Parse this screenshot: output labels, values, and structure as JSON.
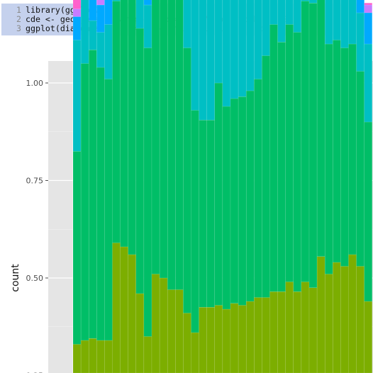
{
  "code": {
    "lines": [
      {
        "num": "1",
        "parts": [
          {
            "t": "library(ggplot2)",
            "k": "plain"
          }
        ]
      },
      {
        "num": "2",
        "parts": [
          {
            "t": "cde <- geom_histogram(position=",
            "k": "plain"
          },
          {
            "t": "\"fill\"",
            "k": "str"
          },
          {
            "t": ", binwidth = ",
            "k": "plain"
          },
          {
            "t": "500",
            "k": "num"
          },
          {
            "t": ")",
            "k": "plain"
          }
        ]
      },
      {
        "num": "3",
        "parts": [
          {
            "t": "ggplot(diamonds, aes(x=price, fill=clarity)) + cde",
            "k": "plain"
          }
        ]
      }
    ]
  },
  "chart_data": {
    "type": "bar",
    "stacking": "fill",
    "ylabel": "count",
    "y_ticks": [
      "1.00",
      "0.75",
      "0.50",
      "0.25"
    ],
    "y_tick_values": [
      1.0,
      0.75,
      0.5,
      0.25
    ],
    "ylim": [
      0.25,
      1.0
    ],
    "bins": 38,
    "series_order_bottom_to_top": [
      "brown",
      "olive",
      "green",
      "cyan",
      "blue",
      "purple",
      "pink"
    ],
    "colors": {
      "brown": "#d49a00",
      "olive": "#7cae00",
      "green": "#00be67",
      "cyan": "#00bfc4",
      "blue": "#00a9ff",
      "purple": "#c77cff",
      "pink": "#ff61cc"
    },
    "boundaries": {
      "brown": [
        0.1,
        0.1,
        0.1,
        0.1,
        0.1,
        0.1,
        0.1,
        0.1,
        0.1,
        0.1,
        0.1,
        0.1,
        0.1,
        0.1,
        0.1,
        0.1,
        0.1,
        0.1,
        0.1,
        0.1,
        0.1,
        0.1,
        0.1,
        0.1,
        0.1,
        0.1,
        0.1,
        0.1,
        0.1,
        0.1,
        0.1,
        0.1,
        0.1,
        0.1,
        0.2,
        0.21,
        0.15,
        0.1
      ],
      "olive": [
        0.23,
        0.24,
        0.245,
        0.24,
        0.24,
        0.49,
        0.48,
        0.46,
        0.36,
        0.25,
        0.41,
        0.4,
        0.37,
        0.37,
        0.31,
        0.26,
        0.325,
        0.325,
        0.33,
        0.32,
        0.335,
        0.33,
        0.34,
        0.35,
        0.35,
        0.365,
        0.365,
        0.39,
        0.365,
        0.39,
        0.375,
        0.455,
        0.41,
        0.44,
        0.33,
        0.35,
        0.38,
        0.34
      ],
      "green": [
        0.495,
        0.71,
        0.74,
        0.7,
        0.67,
        0.62,
        0.65,
        0.69,
        0.68,
        0.74,
        0.815,
        0.79,
        0.92,
        0.8,
        0.68,
        0.57,
        0.48,
        0.48,
        0.57,
        0.52,
        0.525,
        0.535,
        0.54,
        0.56,
        0.62,
        0.685,
        0.64,
        0.66,
        0.665,
        0.72,
        0.73,
        0.735,
        0.59,
        0.57,
        0.56,
        0.54,
        0.5,
        0.46
      ],
      "cyan": [
        0.285,
        0.26,
        0.075,
        0.09,
        0.14,
        0.19,
        0.19,
        0.085,
        0.1,
        0.11,
        0.045,
        0.07,
        0.0,
        0.13,
        0.22,
        0.31,
        0.39,
        0.36,
        0.26,
        0.28,
        0.285,
        0.275,
        0.245,
        0.215,
        0.18,
        0.125,
        0.19,
        0.165,
        0.12,
        0.035,
        0.04,
        0.06,
        0.2,
        0.18,
        0.16,
        0.12,
        0.15,
        0.2
      ],
      "blue": [
        0.06,
        0.0,
        0.07,
        0.07,
        0.09,
        0.06,
        0.085,
        0.07,
        0.065,
        0.065,
        0.045,
        0.045,
        0.025,
        0.025,
        0.045,
        0.08,
        0.085,
        0.07,
        0.055,
        0.07,
        0.07,
        0.06,
        0.04,
        0.04,
        0.04,
        0.06,
        0.075,
        0.065,
        0.1,
        0.095,
        0.085,
        0.06,
        0.07,
        0.08,
        0.08,
        0.08,
        0.08,
        0.08
      ],
      "purple": [
        0.02,
        0.06,
        0.075,
        0.06,
        0.06,
        0.04,
        0.025,
        0.035,
        0.035,
        0.025,
        0.025,
        0.015,
        0.015,
        0.015,
        0.015,
        0.025,
        0.025,
        0.04,
        0.04,
        0.045,
        0.035,
        0.045,
        0.045,
        0.04,
        0.04,
        0.04,
        0.035,
        0.035,
        0.035,
        0.025,
        0.025,
        0.025,
        0.025,
        0.025,
        0.02,
        0.02,
        0.02,
        0.02
      ],
      "pink": [
        0.025,
        0.01,
        0.02,
        0.02,
        0.02,
        0.02,
        0.015,
        0.01,
        0.02,
        0.01,
        0.01,
        0.005,
        0.005,
        0.005,
        0.005,
        0.005,
        0.005,
        0.005,
        0.005,
        0.005,
        0.005,
        0.005,
        0.005,
        0.005,
        0.005,
        0.005,
        0.005,
        0.005,
        0.005,
        0.005,
        0.005,
        0.005,
        0.005,
        0.005,
        0.005,
        0.005,
        0.005,
        0.005
      ]
    }
  }
}
